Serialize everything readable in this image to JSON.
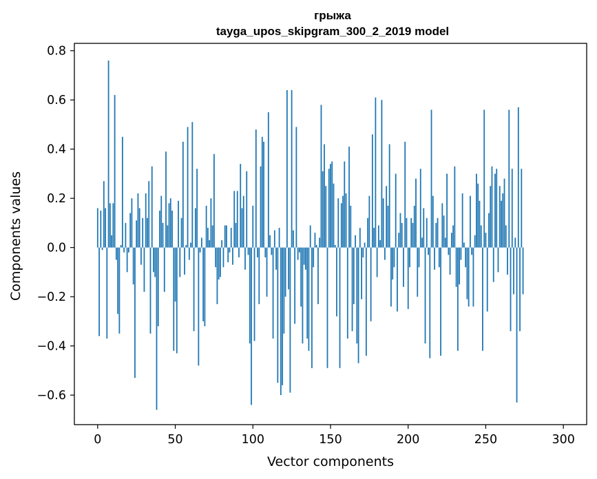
{
  "chart_data": {
    "type": "bar",
    "title": "грыжа",
    "subtitle": "tayga_upos_skipgram_300_2_2019 model",
    "xlabel": "Vector components",
    "ylabel": "Components values",
    "xlim": [
      -15,
      315
    ],
    "ylim": [
      -0.72,
      0.83
    ],
    "xticks": [
      0,
      50,
      100,
      150,
      200,
      250,
      300
    ],
    "yticks": [
      -0.6,
      -0.4,
      -0.2,
      0.0,
      0.2,
      0.4,
      0.6,
      0.8
    ],
    "ytick_labels": [
      "−0.6",
      "−0.4",
      "−0.2",
      "0.0",
      "0.2",
      "0.4",
      "0.6",
      "0.8"
    ],
    "bar_color": "#1f77b4",
    "grid": false,
    "values": [
      0.16,
      -0.36,
      0.15,
      -0.01,
      0.27,
      0.16,
      -0.37,
      0.76,
      0.18,
      0.05,
      0.18,
      0.62,
      -0.05,
      -0.27,
      -0.35,
      0.01,
      0.45,
      -0.02,
      0.1,
      -0.1,
      -0.02,
      0.14,
      0.2,
      -0.15,
      -0.53,
      0.11,
      0.22,
      0.16,
      -0.07,
      0.12,
      -0.18,
      0.22,
      0.12,
      0.27,
      -0.35,
      0.33,
      -0.1,
      -0.12,
      -0.66,
      -0.32,
      0.15,
      0.21,
      0.1,
      -0.18,
      0.39,
      0.09,
      0.18,
      0.2,
      0.15,
      -0.42,
      -0.22,
      -0.43,
      0.19,
      -0.12,
      0.12,
      0.43,
      -0.11,
      0.01,
      0.49,
      -0.05,
      0.02,
      0.51,
      -0.34,
      0.16,
      0.32,
      -0.48,
      -0.02,
      0.04,
      -0.3,
      -0.32,
      0.17,
      0.08,
      0.03,
      0.2,
      0.09,
      0.38,
      -0.08,
      -0.23,
      -0.13,
      -0.12,
      0.03,
      -0.08,
      0.09,
      0.09,
      -0.06,
      -0.02,
      0.08,
      -0.07,
      0.23,
      0.1,
      0.23,
      -0.04,
      0.34,
      0.16,
      0.21,
      -0.09,
      0.31,
      -0.03,
      -0.39,
      -0.64,
      0.17,
      -0.38,
      0.48,
      -0.04,
      -0.23,
      0.33,
      0.45,
      0.43,
      -0.04,
      -0.2,
      0.55,
      0.05,
      -0.03,
      -0.37,
      0.07,
      -0.09,
      -0.55,
      0.08,
      -0.6,
      -0.56,
      -0.35,
      -0.2,
      0.64,
      -0.17,
      -0.59,
      0.64,
      0.07,
      -0.31,
      0.49,
      -0.05,
      -0.02,
      -0.24,
      -0.39,
      -0.07,
      -0.09,
      -0.37,
      -0.42,
      0.09,
      -0.49,
      -0.08,
      0.06,
      0.01,
      -0.23,
      0.04,
      0.58,
      0.31,
      0.42,
      0.25,
      -0.49,
      0.32,
      0.34,
      0.35,
      0.26,
      0.01,
      -0.28,
      0.2,
      -0.49,
      0.18,
      0.21,
      0.35,
      0.22,
      -0.37,
      0.41,
      0.17,
      -0.34,
      -0.23,
      0.05,
      -0.39,
      -0.47,
      0.08,
      -0.21,
      -0.04,
      0.02,
      -0.44,
      0.12,
      0.21,
      -0.3,
      0.46,
      0.08,
      0.61,
      -0.12,
      0.09,
      0.03,
      0.6,
      0.2,
      -0.05,
      0.25,
      0.17,
      0.42,
      -0.24,
      -0.13,
      -0.08,
      0.3,
      -0.26,
      0.06,
      0.14,
      0.1,
      -0.16,
      0.43,
      0.12,
      -0.25,
      -0.08,
      0.12,
      0.1,
      0.17,
      0.28,
      -0.2,
      -0.08,
      0.32,
      0.04,
      0.16,
      -0.39,
      0.12,
      -0.03,
      -0.45,
      0.56,
      0.21,
      -0.09,
      0.1,
      0.12,
      -0.08,
      -0.44,
      0.18,
      0.13,
      0.04,
      0.3,
      -0.03,
      -0.11,
      0.06,
      0.09,
      0.33,
      -0.16,
      -0.42,
      -0.15,
      -0.05,
      0.22,
      0.02,
      -0.08,
      -0.21,
      -0.24,
      0.21,
      -0.03,
      -0.24,
      0.05,
      0.3,
      0.26,
      0.19,
      0.09,
      -0.42,
      0.56,
      0.06,
      -0.26,
      0.14,
      0.25,
      0.33,
      -0.14,
      0.3,
      0.32,
      -0.1,
      0.25,
      0.19,
      0.22,
      0.28,
      0.09,
      -0.11,
      0.56,
      -0.34,
      0.32,
      -0.19,
      0.04,
      -0.63,
      0.57,
      -0.34,
      0.32,
      -0.19
    ]
  }
}
